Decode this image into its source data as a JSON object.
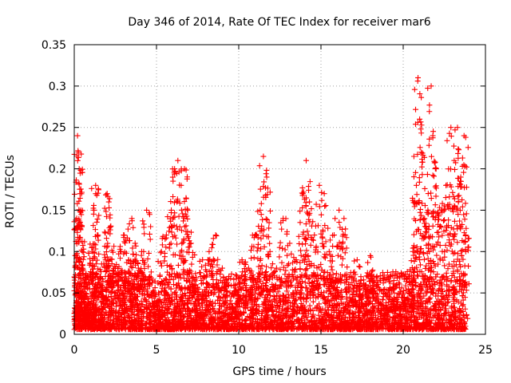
{
  "chart_data": {
    "type": "scatter",
    "title": "Day 346 of 2014, Rate Of TEC Index for receiver mar6",
    "xlabel": "GPS time / hours",
    "ylabel": "ROTI / TECUs",
    "xlim": [
      0,
      25
    ],
    "ylim": [
      0,
      0.35
    ],
    "x_ticks": [
      0,
      5,
      10,
      15,
      20,
      25
    ],
    "x_tick_labels": [
      "0",
      "5",
      "10",
      "15",
      "20",
      "25"
    ],
    "y_ticks": [
      0,
      0.05,
      0.1,
      0.15,
      0.2,
      0.25,
      0.3,
      0.35
    ],
    "y_tick_labels": [
      "0",
      "0.05",
      "0.1",
      "0.15",
      "0.2",
      "0.25",
      "0.3",
      "0.35"
    ],
    "grid": true,
    "marker": "+",
    "color": "#ff0000",
    "series": [
      {
        "name": "ROTI",
        "points": [
          [
            0.05,
            0.062
          ],
          [
            0.1,
            0.035
          ],
          [
            0.15,
            0.14
          ],
          [
            0.2,
            0.24
          ],
          [
            0.25,
            0.22
          ],
          [
            0.3,
            0.2
          ],
          [
            0.35,
            0.17
          ],
          [
            0.4,
            0.15
          ],
          [
            0.5,
            0.08
          ],
          [
            0.6,
            0.05
          ],
          [
            0.7,
            0.03
          ],
          [
            1.0,
            0.07
          ],
          [
            1.1,
            0.1
          ],
          [
            1.2,
            0.15
          ],
          [
            1.3,
            0.18
          ],
          [
            1.4,
            0.12
          ],
          [
            1.6,
            0.06
          ],
          [
            1.9,
            0.09
          ],
          [
            2.0,
            0.17
          ],
          [
            2.1,
            0.16
          ],
          [
            2.2,
            0.13
          ],
          [
            2.5,
            0.08
          ],
          [
            2.8,
            0.1
          ],
          [
            3.0,
            0.12
          ],
          [
            3.3,
            0.09
          ],
          [
            3.5,
            0.14
          ],
          [
            3.7,
            0.11
          ],
          [
            3.9,
            0.08
          ],
          [
            4.1,
            0.1
          ],
          [
            4.4,
            0.15
          ],
          [
            4.6,
            0.07
          ],
          [
            5.0,
            0.04
          ],
          [
            5.3,
            0.1
          ],
          [
            5.6,
            0.12
          ],
          [
            5.9,
            0.15
          ],
          [
            6.1,
            0.2
          ],
          [
            6.3,
            0.21
          ],
          [
            6.5,
            0.18
          ],
          [
            6.7,
            0.2
          ],
          [
            6.9,
            0.15
          ],
          [
            7.1,
            0.11
          ],
          [
            7.4,
            0.06
          ],
          [
            7.8,
            0.09
          ],
          [
            8.2,
            0.1
          ],
          [
            8.6,
            0.12
          ],
          [
            9.0,
            0.08
          ],
          [
            9.4,
            0.07
          ],
          [
            9.8,
            0.06
          ],
          [
            10.2,
            0.09
          ],
          [
            10.6,
            0.08
          ],
          [
            11.0,
            0.12
          ],
          [
            11.3,
            0.15
          ],
          [
            11.5,
            0.215
          ],
          [
            11.7,
            0.19
          ],
          [
            11.9,
            0.1
          ],
          [
            12.3,
            0.08
          ],
          [
            12.7,
            0.14
          ],
          [
            13.1,
            0.11
          ],
          [
            13.5,
            0.09
          ],
          [
            13.9,
            0.17
          ],
          [
            14.1,
            0.21
          ],
          [
            14.3,
            0.16
          ],
          [
            14.6,
            0.12
          ],
          [
            14.9,
            0.18
          ],
          [
            15.2,
            0.17
          ],
          [
            15.5,
            0.1
          ],
          [
            15.8,
            0.12
          ],
          [
            16.1,
            0.15
          ],
          [
            16.4,
            0.14
          ],
          [
            16.8,
            0.07
          ],
          [
            17.2,
            0.09
          ],
          [
            17.6,
            0.06
          ],
          [
            18.0,
            0.095
          ],
          [
            18.4,
            0.07
          ],
          [
            18.8,
            0.05
          ],
          [
            19.2,
            0.07
          ],
          [
            19.6,
            0.06
          ],
          [
            20.0,
            0.05
          ],
          [
            20.3,
            0.07
          ],
          [
            20.6,
            0.1
          ],
          [
            20.8,
            0.18
          ],
          [
            20.9,
            0.31
          ],
          [
            21.0,
            0.26
          ],
          [
            21.1,
            0.22
          ],
          [
            21.3,
            0.14
          ],
          [
            21.5,
            0.15
          ],
          [
            21.7,
            0.3
          ],
          [
            21.8,
            0.24
          ],
          [
            22.0,
            0.2
          ],
          [
            22.3,
            0.15
          ],
          [
            22.6,
            0.18
          ],
          [
            22.9,
            0.25
          ],
          [
            23.1,
            0.21
          ],
          [
            23.3,
            0.25
          ],
          [
            23.5,
            0.19
          ],
          [
            23.7,
            0.24
          ],
          [
            23.8,
            0.12
          ]
        ]
      }
    ],
    "baseline_density_note": "dense band of points between 0.005 and 0.05 across 0-24 h"
  }
}
